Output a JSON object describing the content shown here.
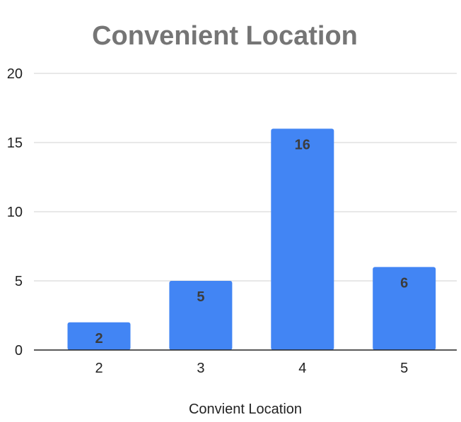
{
  "chart_data": {
    "type": "bar",
    "title": "Convenient Location",
    "xlabel": "Convient Location",
    "ylabel": "",
    "categories": [
      "2",
      "3",
      "4",
      "5"
    ],
    "values": [
      2,
      5,
      16,
      6
    ],
    "data_labels": [
      "2",
      "5",
      "16",
      "6"
    ],
    "ylim": [
      0,
      20
    ],
    "yticks": [
      0,
      5,
      10,
      15,
      20
    ],
    "ytick_labels": [
      "0",
      "5",
      "10",
      "15",
      "20"
    ],
    "grid": true,
    "legend": "none",
    "bar_color": "#4285f4"
  }
}
